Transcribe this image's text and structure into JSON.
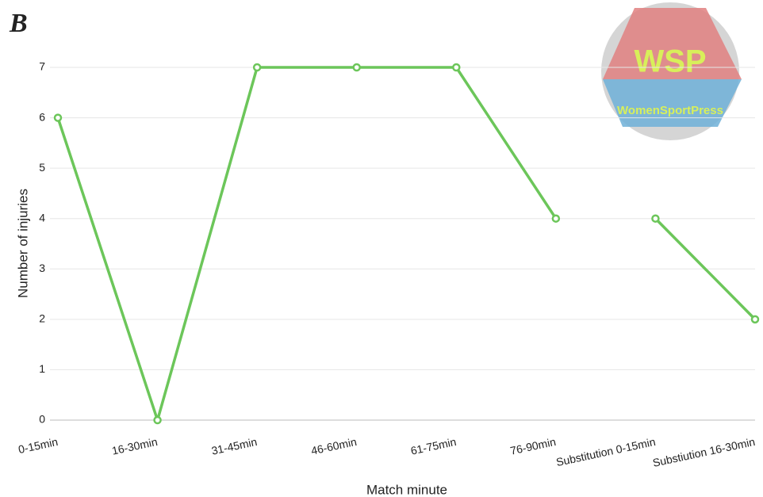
{
  "panel_label": "B",
  "logo": {
    "title": "WSP",
    "subtitle": "WomenSportPress"
  },
  "chart_data": {
    "type": "line",
    "x_label": "Match minute",
    "y_label": "Number of injuries",
    "categories": [
      "0-15min",
      "16-30min",
      "31-45min",
      "46-60min",
      "61-75min",
      "76-90min",
      "Substitution 0-15min",
      "Substiution 16-30min"
    ],
    "series": [
      {
        "color": "#6cc65a",
        "values": [
          6,
          0,
          7,
          7,
          7,
          4,
          null,
          null
        ]
      },
      {
        "color": "#6cc65a",
        "values": [
          null,
          null,
          null,
          null,
          null,
          null,
          4,
          2
        ]
      }
    ],
    "ylim": [
      0,
      7
    ],
    "yticks": [
      0,
      1,
      2,
      3,
      4,
      5,
      6,
      7
    ],
    "grid": true
  }
}
